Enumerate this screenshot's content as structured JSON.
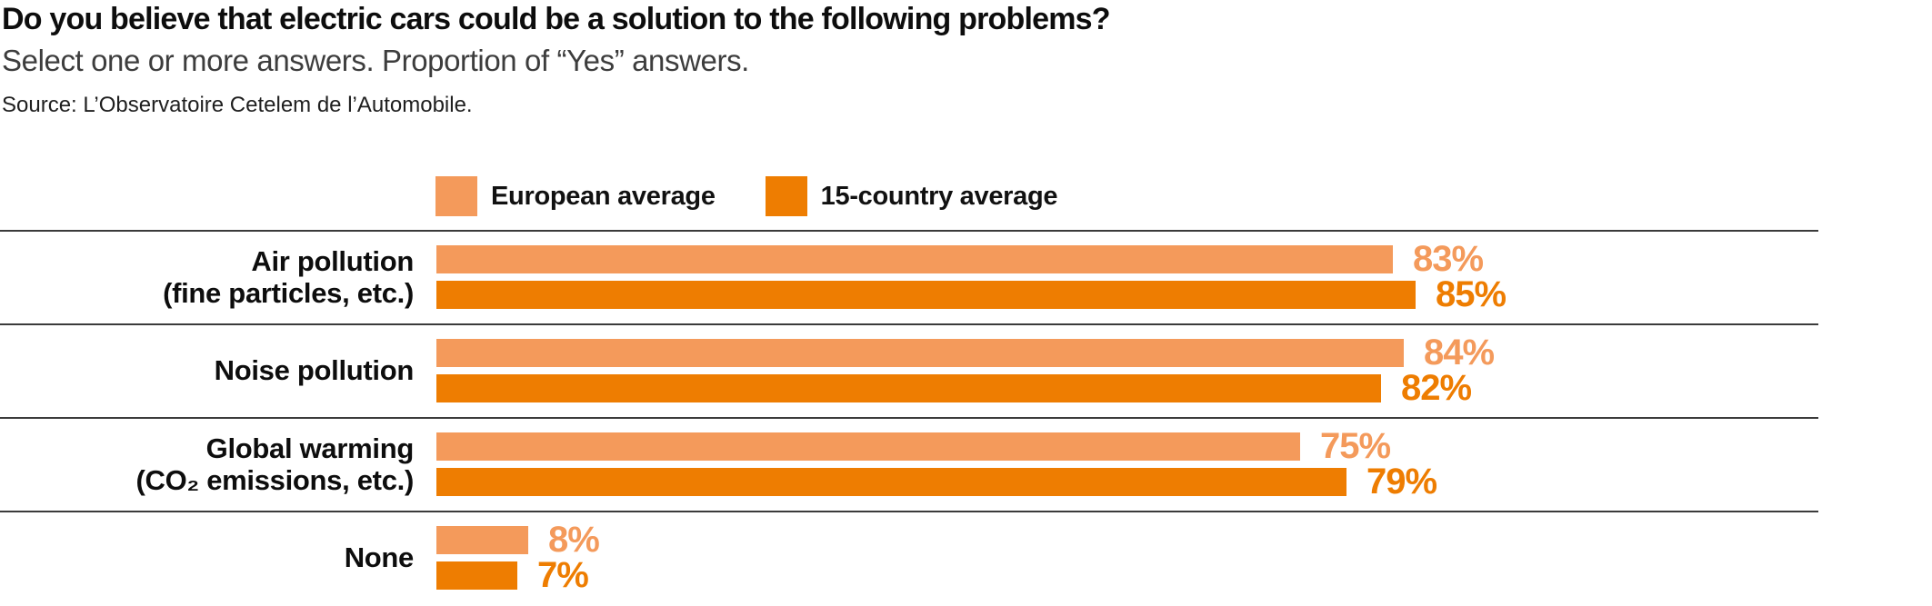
{
  "header": {
    "title": "Do you believe that electric cars could be a solution to the following problems?",
    "subtitle": "Select one or more answers. Proportion of “Yes” answers.",
    "source": "Source: L’Observatoire Cetelem de l’Automobile."
  },
  "legend": [
    {
      "label": "European average",
      "color": "#F49A5B"
    },
    {
      "label": "15-country average",
      "color": "#EE7D01"
    }
  ],
  "colors": {
    "european_average": "#F49A5B",
    "fifteen_country_average": "#EE7D01",
    "divider": "#3b3b3b",
    "title_text": "#0d0d0d",
    "subtitle_text": "#3d3d3d"
  },
  "chart_data": {
    "type": "bar",
    "orientation": "horizontal",
    "title": "Do you believe that electric cars could be a solution to the following problems?",
    "subtitle": "Select one or more answers. Proportion of “Yes” answers.",
    "source": "Source: L’Observatoire Cetelem de l’Automobile.",
    "categories": [
      "Air pollution\n(fine particles, etc.)",
      "Noise pollution",
      "Global warming\n(CO₂ emissions, etc.)",
      "None"
    ],
    "series": [
      {
        "name": "European average",
        "color": "#F49A5B",
        "values": [
          83,
          84,
          75,
          8
        ]
      },
      {
        "name": "15-country average",
        "color": "#EE7D01",
        "values": [
          85,
          82,
          79,
          7
        ]
      }
    ],
    "value_suffix": "%",
    "xlim": [
      0,
      100
    ],
    "grid": "horizontal-row-dividers",
    "legend_position": "top",
    "value_labels": "end-of-bar, colored same as bar"
  }
}
